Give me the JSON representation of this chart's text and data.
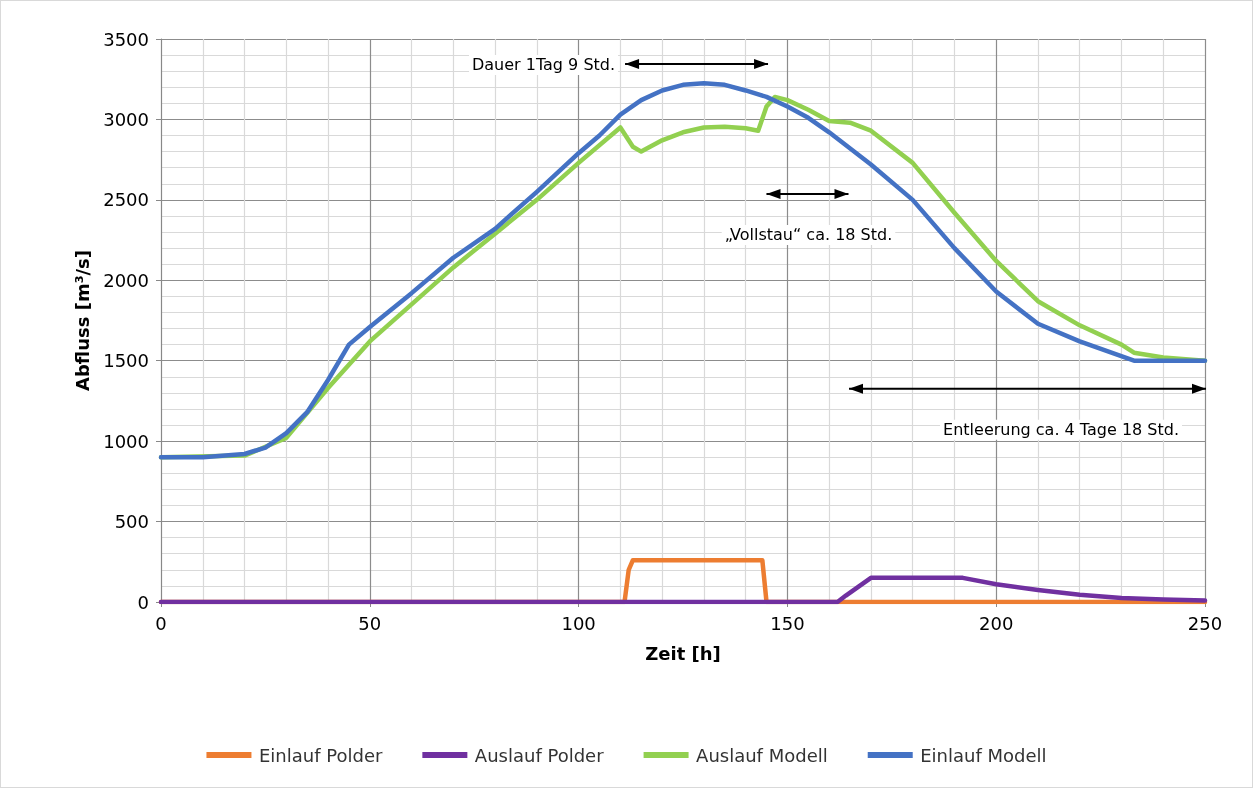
{
  "chart_data": {
    "type": "line",
    "xlabel": "Zeit [h]",
    "ylabel": "Abfluss [m³/s]",
    "xlim": [
      0,
      250
    ],
    "xticks": [
      0,
      50,
      100,
      150,
      200,
      250
    ],
    "ylim": [
      0,
      3500
    ],
    "yticks": [
      0,
      500,
      1000,
      1500,
      2000,
      2500,
      3000,
      3500
    ],
    "grid": true,
    "legend": "bottom",
    "marker": "none",
    "line_style": "solid",
    "series": [
      {
        "name": "Einlauf Polder",
        "color": "#ed7d31",
        "x": [
          0,
          111,
          112,
          113,
          144,
          145,
          250
        ],
        "values": [
          0,
          0,
          200,
          260,
          260,
          0,
          0
        ]
      },
      {
        "name": "Auslauf Polder",
        "color": "#7030a0",
        "x": [
          0,
          162,
          164,
          170,
          192,
          200,
          210,
          220,
          230,
          240,
          250
        ],
        "values": [
          0,
          0,
          40,
          150,
          150,
          110,
          75,
          45,
          25,
          15,
          10
        ]
      },
      {
        "name": "Auslauf Modell",
        "color": "#92d050",
        "x": [
          0,
          20,
          30,
          40,
          50,
          60,
          70,
          80,
          90,
          100,
          110,
          113,
          115,
          120,
          125,
          130,
          135,
          140,
          143,
          145,
          147,
          150,
          155,
          160,
          165,
          170,
          180,
          190,
          200,
          210,
          220,
          230,
          233,
          240,
          250
        ],
        "values": [
          900,
          910,
          1020,
          1330,
          1620,
          1850,
          2080,
          2290,
          2500,
          2730,
          2950,
          2830,
          2800,
          2870,
          2920,
          2950,
          2955,
          2945,
          2930,
          3080,
          3140,
          3120,
          3060,
          2990,
          2980,
          2930,
          2730,
          2420,
          2120,
          1870,
          1720,
          1600,
          1550,
          1520,
          1500
        ]
      },
      {
        "name": "Einlauf Modell",
        "color": "#4472c4",
        "x": [
          0,
          10,
          20,
          25,
          30,
          35,
          40,
          45,
          50,
          60,
          70,
          80,
          90,
          100,
          105,
          110,
          115,
          120,
          125,
          130,
          135,
          140,
          145,
          150,
          155,
          160,
          170,
          180,
          190,
          200,
          210,
          220,
          233,
          250
        ],
        "values": [
          900,
          900,
          920,
          960,
          1050,
          1180,
          1380,
          1600,
          1710,
          1920,
          2140,
          2320,
          2550,
          2790,
          2900,
          3030,
          3120,
          3180,
          3215,
          3225,
          3215,
          3180,
          3140,
          3080,
          3010,
          2920,
          2720,
          2500,
          2200,
          1930,
          1730,
          1620,
          1500,
          1500
        ]
      }
    ],
    "annotations": [
      "Dauer 1Tag 9 Std.",
      "„Vollstau“ ca. 18 Std.",
      "Entleerung ca. 4 Tage 18 Std."
    ]
  }
}
